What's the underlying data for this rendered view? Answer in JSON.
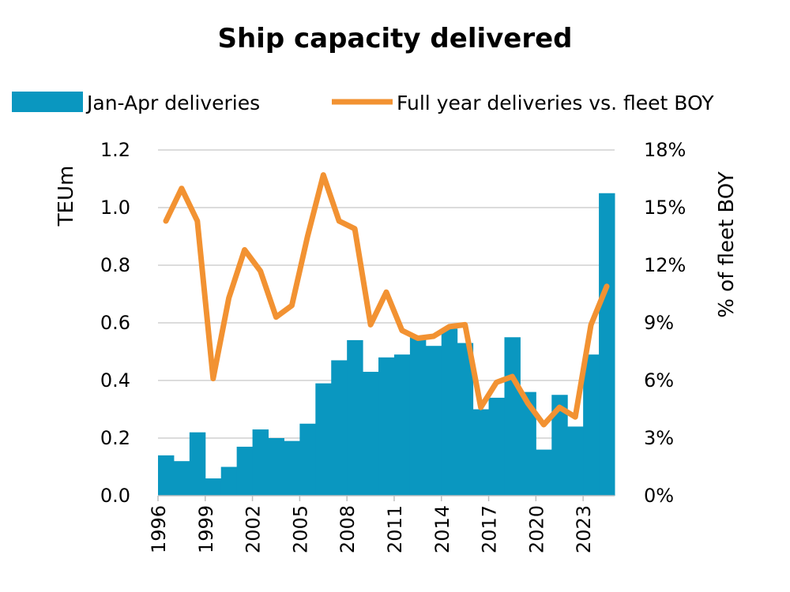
{
  "chart_data": {
    "type": "bar+line",
    "title": "Ship capacity delivered",
    "legend": {
      "placement": "top",
      "entries": [
        "Jan-Apr deliveries",
        "Full year deliveries vs. fleet BOY"
      ]
    },
    "ylabel": "TEUm",
    "y2label": "% of fleet BOY",
    "ylim": [
      0,
      1.2
    ],
    "y2lim": [
      0,
      18
    ],
    "yticks": [
      "0.0",
      "0.2",
      "0.4",
      "0.6",
      "0.8",
      "1.0",
      "1.2"
    ],
    "y2ticks": [
      "0%",
      "3%",
      "6%",
      "9%",
      "12%",
      "15%",
      "18%"
    ],
    "xtick_labels": [
      "1996",
      "1999",
      "2002",
      "2005",
      "2008",
      "2011",
      "2014",
      "2017",
      "2020",
      "2023"
    ],
    "grid": "horizontal",
    "colors": {
      "bars": "#0a97c0",
      "line": "#f29232"
    },
    "categories": [
      "1996",
      "1997",
      "1998",
      "1999",
      "2000",
      "2001",
      "2002",
      "2003",
      "2004",
      "2005",
      "2006",
      "2007",
      "2008",
      "2009",
      "2010",
      "2011",
      "2012",
      "2013",
      "2014",
      "2015",
      "2016",
      "2017",
      "2018",
      "2019",
      "2020",
      "2021",
      "2022",
      "2023",
      "2024"
    ],
    "series": [
      {
        "name": "Jan-Apr deliveries",
        "type": "bar",
        "axis": "left",
        "values": [
          0.14,
          0.12,
          0.22,
          0.06,
          0.1,
          0.17,
          0.23,
          0.2,
          0.19,
          0.25,
          0.39,
          0.47,
          0.54,
          0.43,
          0.48,
          0.49,
          0.55,
          0.52,
          0.58,
          0.53,
          0.3,
          0.34,
          0.55,
          0.36,
          0.16,
          0.35,
          0.24,
          0.49,
          1.05
        ]
      },
      {
        "name": "Full year deliveries vs. fleet BOY",
        "type": "line",
        "axis": "right",
        "values": [
          14.3,
          16.0,
          14.3,
          6.1,
          10.3,
          12.8,
          11.7,
          9.3,
          9.9,
          13.5,
          16.7,
          14.3,
          13.9,
          8.9,
          10.6,
          8.6,
          8.2,
          8.3,
          8.8,
          8.9,
          4.6,
          5.9,
          6.2,
          4.8,
          3.7,
          4.6,
          4.1,
          8.9,
          10.9
        ]
      }
    ]
  }
}
